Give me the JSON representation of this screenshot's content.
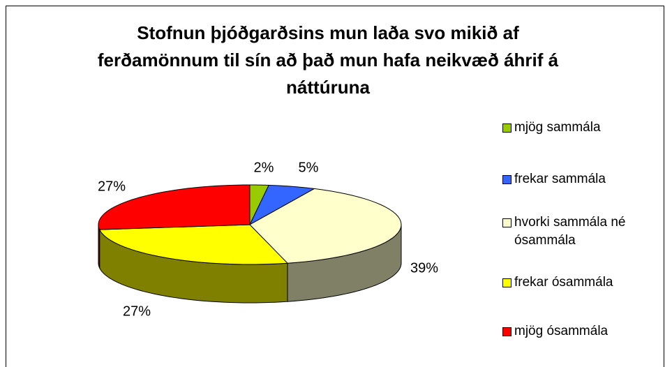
{
  "chart_data": {
    "type": "pie",
    "title": "Stofnun þjóðgarðsins mun laða svo mikið af ferðamönnum til sín að það mun hafa neikvæð áhrif á náttúruna",
    "categories": [
      "mjög sammála",
      "frekar sammála",
      "hvorki sammála né ósammála",
      "frekar ósammála",
      "mjög ósammála"
    ],
    "values": [
      2,
      5,
      39,
      27,
      27
    ],
    "value_labels": [
      "2%",
      "5%",
      "39%",
      "27%",
      "27%"
    ],
    "colors": [
      "#99cc00",
      "#3366ff",
      "#ffffcc",
      "#ffff00",
      "#ff0000"
    ],
    "legend": "right"
  }
}
